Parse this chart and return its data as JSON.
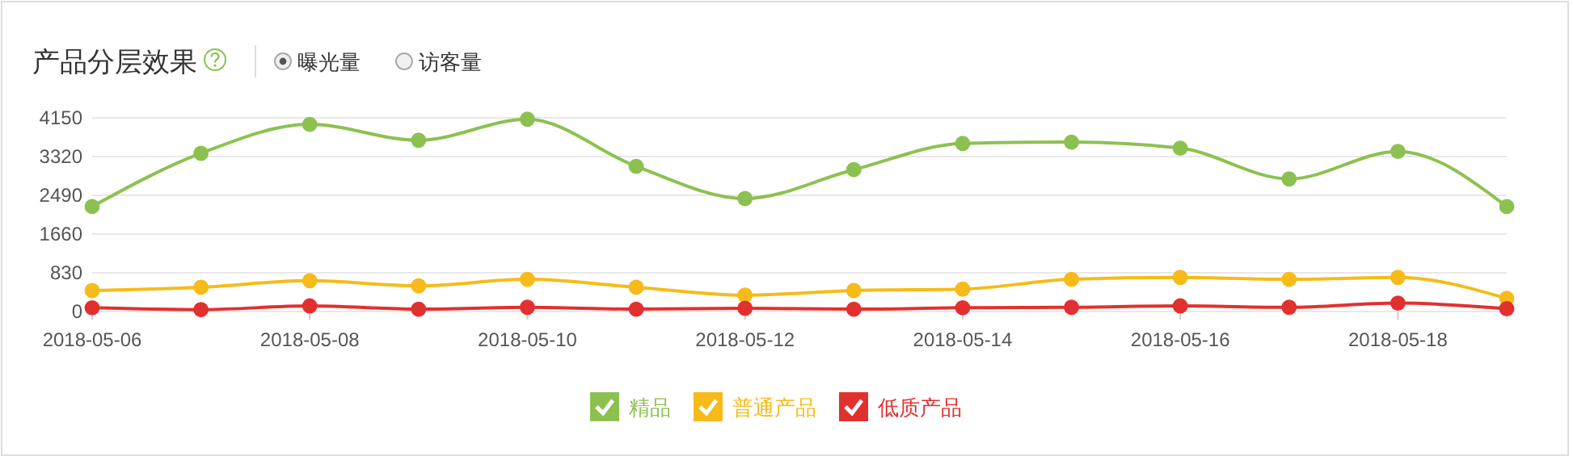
{
  "chart_data": {
    "type": "line",
    "title": "产品分层效果",
    "annotations": [
      "曝光量",
      "访客量"
    ],
    "x": [
      "2018-05-06",
      "2018-05-07",
      "2018-05-08",
      "2018-05-09",
      "2018-05-10",
      "2018-05-11",
      "2018-05-12",
      "2018-05-13",
      "2018-05-14",
      "2018-05-15",
      "2018-05-16",
      "2018-05-17",
      "2018-05-18",
      "2018-05-19"
    ],
    "series": [
      {
        "name": "精品",
        "color": "#8cc152",
        "values": [
          2250,
          3390,
          4010,
          3670,
          4120,
          3110,
          2420,
          3040,
          3600,
          3630,
          3500,
          2840,
          3430,
          2250
        ]
      },
      {
        "name": "普通产品",
        "color": "#f6bb1a",
        "values": [
          450,
          520,
          660,
          550,
          690,
          520,
          350,
          450,
          480,
          690,
          730,
          690,
          730,
          280
        ]
      },
      {
        "name": "低质产品",
        "color": "#e2302f",
        "values": [
          80,
          40,
          120,
          50,
          90,
          50,
          70,
          50,
          80,
          90,
          120,
          90,
          180,
          60
        ]
      }
    ],
    "xlim": [
      "2018-05-06",
      "2018-05-19"
    ],
    "xticks": [
      "2018-05-06",
      "2018-05-08",
      "2018-05-10",
      "2018-05-12",
      "2018-05-14",
      "2018-05-16",
      "2018-05-18"
    ],
    "ylim": [
      0,
      4150
    ],
    "yticks": [
      0,
      830,
      1660,
      2490,
      3320,
      4150
    ],
    "grid": "y",
    "legend": "bottom",
    "marker": "circle",
    "line_style": "solid"
  }
}
